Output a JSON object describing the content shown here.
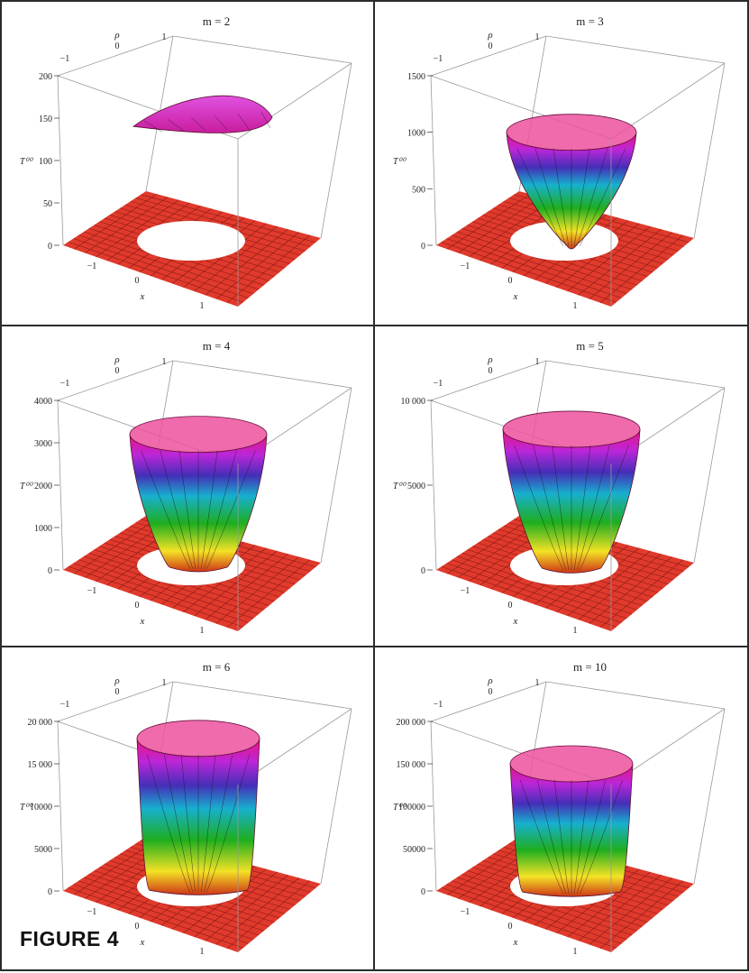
{
  "figure_label": "FIGURE 4",
  "colors": {
    "floor": "#e03a2c",
    "floor_grid": "#8a1a14",
    "box_edge": "#9a9a9a",
    "surface_mesh": "#111111",
    "panel_border": "#2b2b2b"
  },
  "chart_data": [
    {
      "type": "surface3d",
      "title": "m = 2",
      "zlabel": "T⁰⁰",
      "xlabel": "x",
      "ylabel": "ρ",
      "x_ticks": [
        "−1",
        "0",
        "1"
      ],
      "y_ticks": [
        "−1",
        "0",
        "1"
      ],
      "z_ticks": [
        {
          "label": "0",
          "value": 0
        },
        {
          "label": "50",
          "value": 50
        },
        {
          "label": "100",
          "value": 100
        },
        {
          "label": "150",
          "value": 150
        },
        {
          "label": "200",
          "value": 200
        }
      ],
      "zlim": [
        0,
        200
      ],
      "surface_z_range": [
        150,
        170
      ],
      "shape": "saddle"
    },
    {
      "type": "surface3d",
      "title": "m = 3",
      "zlabel": "T⁰⁰",
      "xlabel": "x",
      "ylabel": "ρ",
      "x_ticks": [
        "−1",
        "0",
        "1"
      ],
      "y_ticks": [
        "−1",
        "0",
        "1"
      ],
      "z_ticks": [
        {
          "label": "0",
          "value": 0
        },
        {
          "label": "500",
          "value": 500
        },
        {
          "label": "1000",
          "value": 1000
        },
        {
          "label": "1500",
          "value": 1500
        }
      ],
      "zlim": [
        0,
        1500
      ],
      "surface_z_range": [
        40,
        1000
      ],
      "shape": "bowl"
    },
    {
      "type": "surface3d",
      "title": "m = 4",
      "zlabel": "T⁰⁰",
      "xlabel": "x",
      "ylabel": "ρ",
      "x_ticks": [
        "−1",
        "0",
        "1"
      ],
      "y_ticks": [
        "−1",
        "0",
        "1"
      ],
      "z_ticks": [
        {
          "label": "0",
          "value": 0
        },
        {
          "label": "1000",
          "value": 1000
        },
        {
          "label": "2000",
          "value": 2000
        },
        {
          "label": "3000",
          "value": 3000
        },
        {
          "label": "4000",
          "value": 4000
        }
      ],
      "zlim": [
        0,
        4000
      ],
      "surface_z_range": [
        150,
        3200
      ],
      "shape": "cup"
    },
    {
      "type": "surface3d",
      "title": "m = 5",
      "zlabel": "T⁰⁰",
      "xlabel": "x",
      "ylabel": "ρ",
      "x_ticks": [
        "−1",
        "0",
        "1"
      ],
      "y_ticks": [
        "−1",
        "0",
        "1"
      ],
      "z_ticks": [
        {
          "label": "0",
          "value": 0
        },
        {
          "label": "5000",
          "value": 5000
        },
        {
          "label": "10 000",
          "value": 10000
        }
      ],
      "zlim": [
        0,
        10000
      ],
      "surface_z_range": [
        300,
        8300
      ],
      "shape": "cup"
    },
    {
      "type": "surface3d",
      "title": "m = 6",
      "zlabel": "T⁰⁰",
      "xlabel": "x",
      "ylabel": "ρ",
      "x_ticks": [
        "−1",
        "0",
        "1"
      ],
      "y_ticks": [
        "−1",
        "0",
        "1"
      ],
      "z_ticks": [
        {
          "label": "0",
          "value": 0
        },
        {
          "label": "5000",
          "value": 5000
        },
        {
          "label": "10000",
          "value": 10000
        },
        {
          "label": "15 000",
          "value": 15000
        },
        {
          "label": "20 000",
          "value": 20000
        }
      ],
      "zlim": [
        0,
        20000
      ],
      "surface_z_range": [
        500,
        18000
      ],
      "shape": "cylinder"
    },
    {
      "type": "surface3d",
      "title": "m = 10",
      "zlabel": "T⁰⁰",
      "xlabel": "x",
      "ylabel": "ρ",
      "x_ticks": [
        "−1",
        "0",
        "1"
      ],
      "y_ticks": [
        "−1",
        "0",
        "1"
      ],
      "z_ticks": [
        {
          "label": "0",
          "value": 0
        },
        {
          "label": "50000",
          "value": 50000
        },
        {
          "label": "100000",
          "value": 100000
        },
        {
          "label": "150 000",
          "value": 150000
        },
        {
          "label": "200 000",
          "value": 200000
        }
      ],
      "zlim": [
        0,
        200000
      ],
      "surface_z_range": [
        3000,
        150000
      ],
      "shape": "cylinder"
    }
  ]
}
